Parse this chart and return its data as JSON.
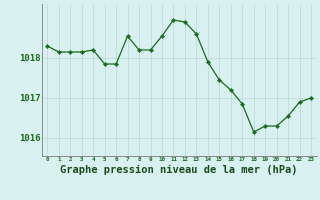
{
  "hours": [
    0,
    1,
    2,
    3,
    4,
    5,
    6,
    7,
    8,
    9,
    10,
    11,
    12,
    13,
    14,
    15,
    16,
    17,
    18,
    19,
    20,
    21,
    22,
    23
  ],
  "pressure": [
    1018.3,
    1018.15,
    1018.15,
    1018.15,
    1018.2,
    1017.85,
    1017.85,
    1018.55,
    1018.2,
    1018.2,
    1018.55,
    1018.95,
    1018.9,
    1018.6,
    1017.9,
    1017.45,
    1017.2,
    1016.85,
    1016.15,
    1016.3,
    1016.3,
    1016.55,
    1016.9,
    1017.0
  ],
  "line_color": "#1a6b1a",
  "marker_color": "#1a6b1a",
  "bg_color": "#d8f0f0",
  "grid_color": "#b8d8d8",
  "xlabel": "Graphe pression niveau de la mer (hPa)",
  "xlabel_color": "#1a4a1a",
  "xlabel_fontsize": 7.5,
  "tick_label_color": "#1a6b1a",
  "ytick_labels": [
    "1016",
    "1017",
    "1018"
  ],
  "ylim": [
    1015.55,
    1019.35
  ],
  "xlim": [
    -0.5,
    23.5
  ],
  "left_border_color": "#888888",
  "bottom_border_color": "#888888"
}
